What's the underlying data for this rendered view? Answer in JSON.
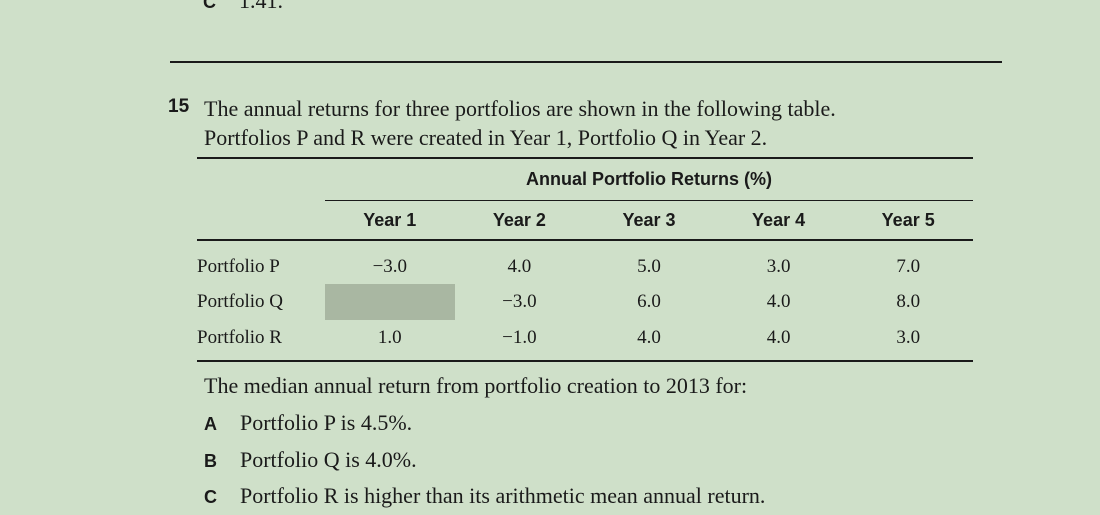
{
  "previous_question": {
    "letter": "C",
    "text": "1.41."
  },
  "question": {
    "number": "15",
    "line1": "The annual returns for three portfolios are shown in the following table.",
    "line2": "Portfolios P and R were created in Year 1, Portfolio Q in Year 2."
  },
  "table": {
    "super_header": "Annual Portfolio Returns (%)",
    "columns": [
      "Year 1",
      "Year 2",
      "Year 3",
      "Year 4",
      "Year 5"
    ],
    "rows": [
      {
        "label": "Portfolio P",
        "values": [
          "−3.0",
          "4.0",
          "5.0",
          "3.0",
          "7.0"
        ]
      },
      {
        "label": "Portfolio Q",
        "values": [
          "",
          "−3.0",
          "6.0",
          "4.0",
          "8.0"
        ]
      },
      {
        "label": "Portfolio R",
        "values": [
          "1.0",
          "−1.0",
          "4.0",
          "4.0",
          "3.0"
        ]
      }
    ]
  },
  "stem": "The median annual return from portfolio creation to 2013 for:",
  "options": [
    {
      "letter": "A",
      "text": "Portfolio P is 4.5%."
    },
    {
      "letter": "B",
      "text": "Portfolio Q is 4.0%."
    },
    {
      "letter": "C",
      "text": "Portfolio R is higher than its arithmetic mean annual return."
    }
  ]
}
